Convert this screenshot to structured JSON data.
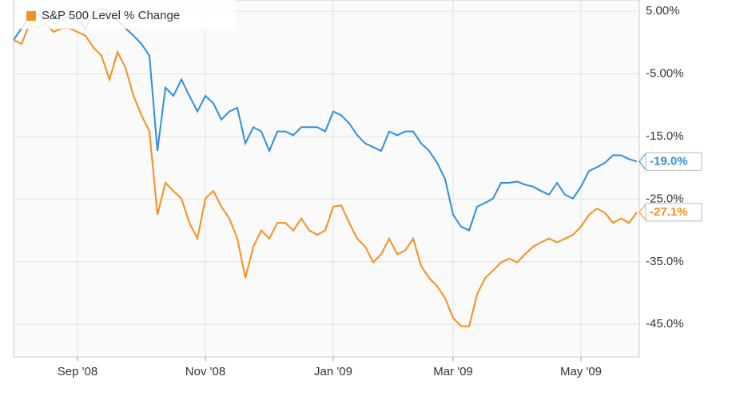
{
  "chart_data": {
    "type": "line",
    "categories": [
      null,
      null,
      null,
      null,
      null,
      null,
      null,
      null,
      "Sep '08",
      null,
      null,
      null,
      null,
      null,
      null,
      null,
      null,
      null,
      null,
      null,
      null,
      null,
      null,
      null,
      "Nov '08",
      null,
      null,
      null,
      null,
      null,
      null,
      null,
      null,
      null,
      null,
      null,
      null,
      null,
      null,
      null,
      "Jan '09",
      null,
      null,
      null,
      null,
      null,
      null,
      null,
      null,
      null,
      null,
      null,
      null,
      null,
      null,
      "Mar '09",
      null,
      null,
      null,
      null,
      null,
      null,
      null,
      null,
      null,
      null,
      null,
      null,
      null,
      null,
      null,
      "May '09",
      null,
      null,
      null,
      null,
      null,
      null,
      null
    ],
    "series": [
      {
        "color": "#2f8fde",
        "values": [
          0.4,
          2.3,
          4.2,
          4.5,
          4.0,
          4.2,
          3.6,
          4.2,
          3.6,
          2.3,
          4.9,
          5.5,
          4.9,
          3.6,
          2.3,
          1.1,
          -0.2,
          -2.1,
          -17.3,
          -7.2,
          -8.5,
          -5.9,
          -8.5,
          -11.0,
          -8.5,
          -9.7,
          -12.3,
          -11.0,
          -10.4,
          -16.1,
          -13.5,
          -14.2,
          -17.3,
          -14.2,
          -14.2,
          -14.8,
          -13.5,
          -13.5,
          -13.5,
          -14.2,
          -11.0,
          -11.6,
          -12.9,
          -14.8,
          -16.1,
          -16.7,
          -17.3,
          -14.2,
          -14.8,
          -14.2,
          -14.2,
          -16.1,
          -17.3,
          -19.2,
          -21.8,
          -27.5,
          -29.4,
          -30.0,
          -26.2,
          -25.6,
          -24.9,
          -22.4,
          -22.4,
          -22.2,
          -22.7,
          -23.0,
          -23.7,
          -24.3,
          -22.4,
          -24.3,
          -24.9,
          -23.0,
          -20.5,
          -19.9,
          -19.2,
          -18.0,
          -18.0,
          -18.6,
          -19.0
        ],
        "value_labels": [
          null,
          null,
          null,
          null,
          null,
          null,
          null,
          null,
          null,
          null,
          null,
          null,
          null,
          null,
          null,
          null,
          null,
          null,
          null,
          null,
          null,
          null,
          null,
          null,
          null,
          null,
          null,
          null,
          null,
          null,
          null,
          null,
          null,
          null,
          null,
          null,
          null,
          null,
          null,
          null,
          null,
          null,
          null,
          null,
          null,
          null,
          null,
          null,
          null,
          null,
          null,
          null,
          null,
          null,
          null,
          null,
          null,
          null,
          null,
          null,
          null,
          null,
          null,
          null,
          null,
          null,
          null,
          null,
          null,
          null,
          null,
          null,
          null,
          null,
          null,
          null,
          null,
          null,
          "-19.0%"
        ]
      },
      {
        "name": "S&P 500 Level % Change",
        "color": "#f7901e",
        "values": [
          0.4,
          -0.2,
          3.0,
          2.3,
          3.0,
          1.7,
          2.3,
          2.3,
          1.7,
          1.1,
          -0.8,
          -2.1,
          -5.9,
          -1.5,
          -4.0,
          -8.5,
          -11.6,
          -14.2,
          -27.5,
          -22.4,
          -23.7,
          -24.9,
          -28.8,
          -31.3,
          -24.9,
          -23.7,
          -26.2,
          -28.1,
          -31.3,
          -37.6,
          -32.6,
          -30.0,
          -31.3,
          -28.8,
          -28.8,
          -30.0,
          -28.1,
          -30.0,
          -30.7,
          -30.0,
          -26.2,
          -26.0,
          -28.8,
          -31.3,
          -32.6,
          -35.1,
          -33.8,
          -31.3,
          -33.8,
          -33.2,
          -31.3,
          -35.7,
          -37.6,
          -38.9,
          -40.8,
          -44.0,
          -45.3,
          -45.3,
          -40.2,
          -37.6,
          -36.4,
          -35.1,
          -34.5,
          -35.1,
          -33.8,
          -32.6,
          -31.9,
          -31.3,
          -31.9,
          -31.3,
          -30.7,
          -29.4,
          -27.5,
          -26.5,
          -27.2,
          -28.8,
          -28.1,
          -28.8,
          -27.1
        ],
        "value_labels": [
          null,
          null,
          null,
          null,
          null,
          null,
          null,
          null,
          null,
          null,
          null,
          null,
          null,
          null,
          null,
          null,
          null,
          null,
          null,
          null,
          null,
          null,
          null,
          null,
          null,
          null,
          null,
          null,
          null,
          null,
          null,
          null,
          null,
          null,
          null,
          null,
          null,
          null,
          null,
          null,
          null,
          null,
          null,
          null,
          null,
          null,
          null,
          null,
          null,
          null,
          null,
          null,
          null,
          null,
          null,
          null,
          null,
          null,
          null,
          null,
          null,
          null,
          null,
          null,
          null,
          null,
          null,
          null,
          null,
          null,
          null,
          null,
          null,
          null,
          null,
          null,
          null,
          null,
          "-27.1%"
        ]
      }
    ],
    "ylim": [
      -50.2,
      6.8
    ],
    "yticks": [
      {
        "value": 5,
        "label": "5.00%"
      },
      {
        "value": -5,
        "label": "-5.00%"
      },
      {
        "value": -15,
        "label": "-15.0%"
      },
      {
        "value": -25,
        "label": "-25.0%"
      },
      {
        "value": -35,
        "label": "-35.0%"
      },
      {
        "value": -45,
        "label": "-45.0%"
      }
    ],
    "grid": true,
    "legend": "top-left"
  }
}
